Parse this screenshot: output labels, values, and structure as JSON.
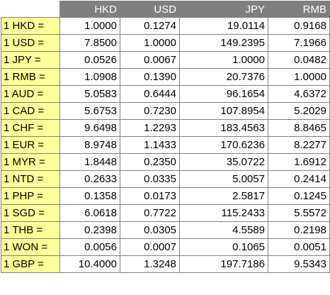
{
  "table": {
    "columns": [
      "HKD",
      "USD",
      "JPY",
      "RMB"
    ],
    "rows": [
      {
        "label": "1 HKD =",
        "values": [
          "1.0000",
          "0.1274",
          "19.0114",
          "0.9168"
        ]
      },
      {
        "label": "1 USD =",
        "values": [
          "7.8500",
          "1.0000",
          "149.2395",
          "7.1966"
        ]
      },
      {
        "label": "1 JPY =",
        "values": [
          "0.0526",
          "0.0067",
          "1.0000",
          "0.0482"
        ]
      },
      {
        "label": "1 RMB =",
        "values": [
          "1.0908",
          "0.1390",
          "20.7376",
          "1.0000"
        ]
      },
      {
        "label": "1 AUD =",
        "values": [
          "5.0583",
          "0.6444",
          "96.1654",
          "4.6372"
        ]
      },
      {
        "label": "1 CAD =",
        "values": [
          "5.6753",
          "0.7230",
          "107.8954",
          "5.2029"
        ]
      },
      {
        "label": "1 CHF =",
        "values": [
          "9.6498",
          "1.2293",
          "183.4563",
          "8.8465"
        ]
      },
      {
        "label": "1 EUR =",
        "values": [
          "8.9748",
          "1.1433",
          "170.6236",
          "8.2277"
        ]
      },
      {
        "label": "1 MYR =",
        "values": [
          "1.8448",
          "0.2350",
          "35.0722",
          "1.6912"
        ]
      },
      {
        "label": "1 NTD =",
        "values": [
          "0.2633",
          "0.0335",
          "5.0057",
          "0.2414"
        ]
      },
      {
        "label": "1 PHP =",
        "values": [
          "0.1358",
          "0.0173",
          "2.5817",
          "0.1245"
        ]
      },
      {
        "label": "1 SGD =",
        "values": [
          "6.0618",
          "0.7722",
          "115.2433",
          "5.5572"
        ]
      },
      {
        "label": "1 THB =",
        "values": [
          "0.2398",
          "0.0305",
          "4.5589",
          "0.2198"
        ]
      },
      {
        "label": "1 WON =",
        "values": [
          "0.0056",
          "0.0007",
          "0.1065",
          "0.0051"
        ]
      },
      {
        "label": "1 GBP =",
        "values": [
          "10.4000",
          "1.3248",
          "197.7186",
          "9.5343"
        ]
      }
    ]
  },
  "colors": {
    "header_bg": "#7f7f7f",
    "header_text": "#ffffff",
    "row_label_bg": "#ffff99",
    "border": "#7f7f7f"
  }
}
